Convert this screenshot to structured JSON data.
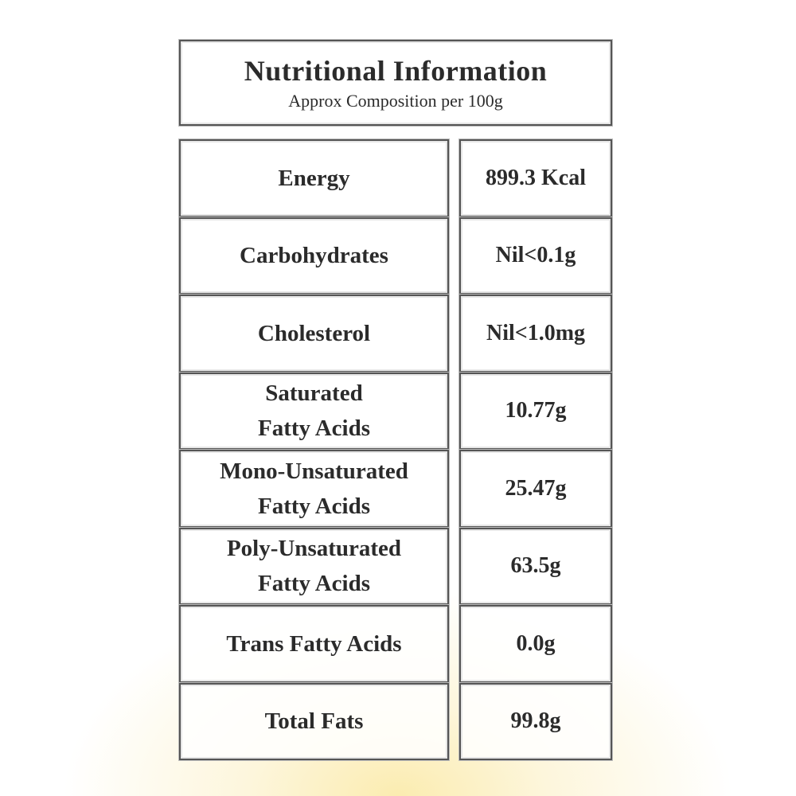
{
  "header": {
    "title": "Nutritional Information",
    "subtitle": "Approx Composition per 100g"
  },
  "table": {
    "rows": [
      {
        "label": [
          "Energy"
        ],
        "value": "899.3 Kcal"
      },
      {
        "label": [
          "Carbohydrates"
        ],
        "value": "Nil<0.1g"
      },
      {
        "label": [
          "Cholesterol"
        ],
        "value": "Nil<1.0mg"
      },
      {
        "label": [
          "Saturated",
          "Fatty Acids"
        ],
        "value": "10.77g"
      },
      {
        "label": [
          "Mono-Unsaturated",
          "Fatty Acids"
        ],
        "value": "25.47g"
      },
      {
        "label": [
          "Poly-Unsaturated",
          "Fatty Acids"
        ],
        "value": "63.5g"
      },
      {
        "label": [
          "Trans Fatty Acids"
        ],
        "value": "0.0g"
      },
      {
        "label": [
          "Total Fats"
        ],
        "value": "99.8g"
      }
    ]
  }
}
